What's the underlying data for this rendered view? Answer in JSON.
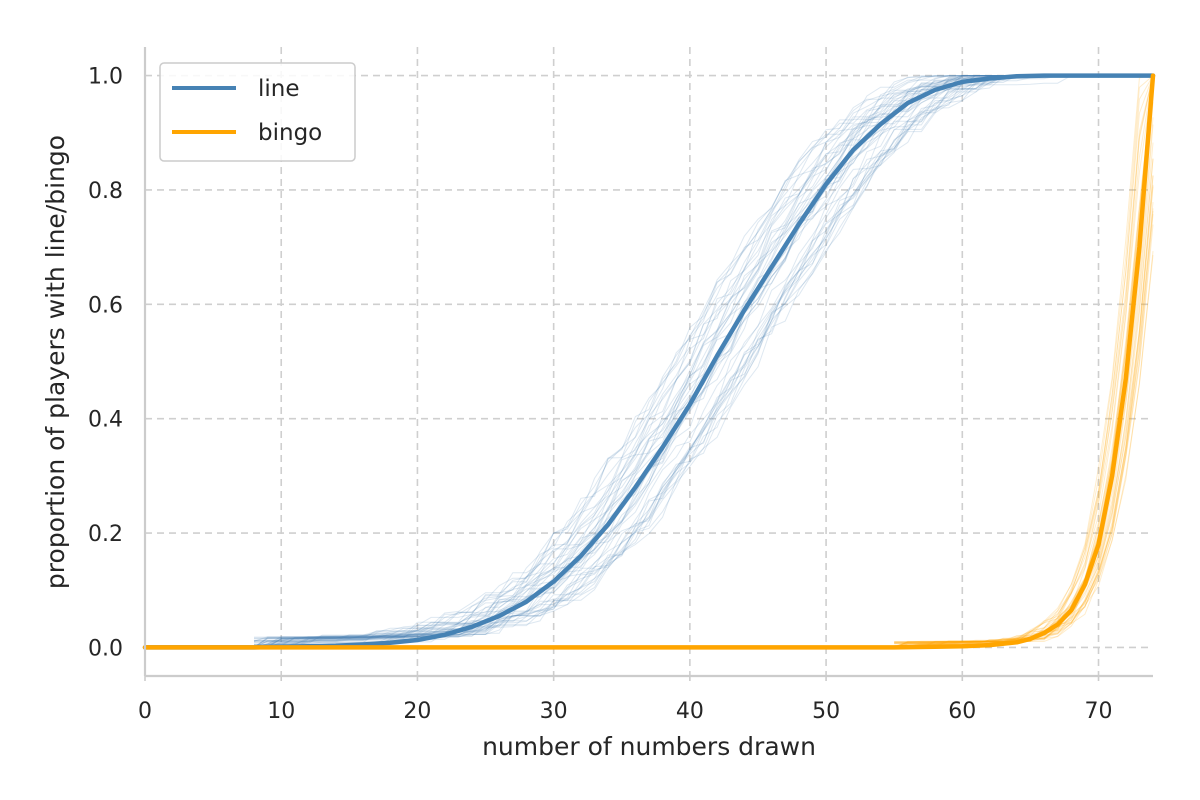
{
  "chart_data": {
    "type": "line",
    "title": "",
    "xlabel": "number of numbers drawn",
    "ylabel": "proportion of players with line/bingo",
    "xlim": [
      0,
      74
    ],
    "ylim": [
      -0.05,
      1.05
    ],
    "xticks": [
      0,
      10,
      20,
      30,
      40,
      50,
      60,
      70
    ],
    "yticks": [
      0.0,
      0.2,
      0.4,
      0.6,
      0.8,
      1.0
    ],
    "xtick_labels": [
      "0",
      "10",
      "20",
      "30",
      "40",
      "50",
      "60",
      "70"
    ],
    "ytick_labels": [
      "0.0",
      "0.2",
      "0.4",
      "0.6",
      "0.8",
      "1.0"
    ],
    "grid": true,
    "legend_position": "top-left",
    "series": [
      {
        "name": "line",
        "color": "#4682b4",
        "x": [
          0,
          8,
          10,
          14,
          16,
          18,
          20,
          22,
          24,
          26,
          28,
          30,
          32,
          34,
          36,
          38,
          40,
          42,
          44,
          46,
          48,
          50,
          52,
          54,
          56,
          58,
          60,
          62,
          64,
          66,
          68,
          70,
          72,
          74
        ],
        "y": [
          0.0,
          0.0,
          0.001,
          0.003,
          0.005,
          0.008,
          0.013,
          0.022,
          0.036,
          0.055,
          0.08,
          0.115,
          0.16,
          0.215,
          0.28,
          0.35,
          0.425,
          0.51,
          0.59,
          0.665,
          0.74,
          0.81,
          0.87,
          0.915,
          0.952,
          0.975,
          0.989,
          0.995,
          0.999,
          1.0,
          1.0,
          1.0,
          1.0,
          1.0
        ]
      },
      {
        "name": "bingo",
        "color": "#ffa500",
        "x": [
          0,
          50,
          55,
          58,
          60,
          62,
          64,
          65,
          66,
          67,
          68,
          69,
          70,
          71,
          72,
          73,
          74
        ],
        "y": [
          0.0,
          0.0,
          0.0,
          0.001,
          0.002,
          0.004,
          0.009,
          0.015,
          0.025,
          0.04,
          0.065,
          0.11,
          0.18,
          0.3,
          0.47,
          0.7,
          1.0
        ]
      }
    ]
  }
}
